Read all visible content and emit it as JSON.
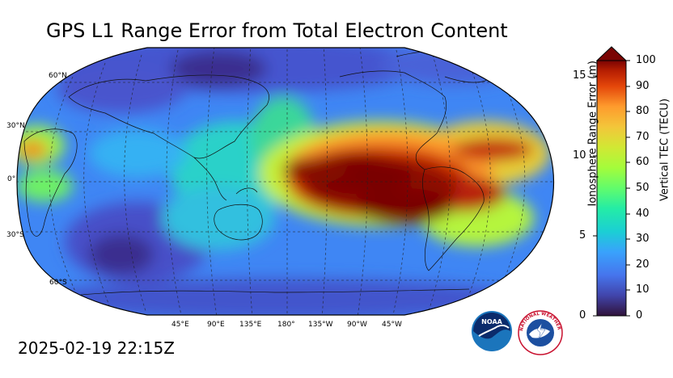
{
  "title": "GPS L1 Range Error from Total Electron Content",
  "timestamp": "2025-02-19 22:15Z",
  "map": {
    "projection": "Robinson",
    "lat_labels": [
      "60°N",
      "30°N",
      "0°",
      "30°S",
      "60°S"
    ],
    "lon_labels": [
      "45°E",
      "90°E",
      "135°E",
      "180°",
      "135°W",
      "90°W",
      "45°W"
    ],
    "colors": {
      "deep_blue": "#30123b",
      "blue": "#4662d7",
      "light_blue": "#36aaf9",
      "cyan": "#1ae4b6",
      "green": "#72fe5e",
      "yellow": "#c7ef34",
      "orange": "#fe9b2d",
      "red": "#d23105",
      "dark_red": "#7a0403"
    }
  },
  "colorbar": {
    "left_axis_label": "Ionosphere Range Error (m)",
    "right_axis_label": "Vertical TEC (TECU)",
    "left_ticks": [
      "0",
      "5",
      "10",
      "15"
    ],
    "right_ticks": [
      "0",
      "10",
      "20",
      "30",
      "40",
      "50",
      "60",
      "70",
      "80",
      "90",
      "100"
    ],
    "tec_min": 0,
    "tec_max": 100,
    "extend": "max",
    "colormap": "turbo"
  },
  "logos": {
    "noaa_text": "NOAA",
    "nws_text": "NATIONAL WEATHER SERVICE"
  }
}
